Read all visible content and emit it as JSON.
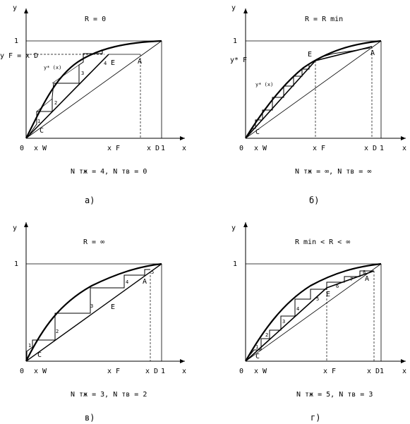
{
  "panels": [
    {
      "id": "a",
      "title": "R = 0",
      "caption": "а)",
      "ntr_text": "N тж = 4,  N тв = 0",
      "labels": {
        "y": "y",
        "x": "x",
        "origin": "0",
        "one_y": "1",
        "one_x": "1",
        "xw": "x W",
        "xf": "x F",
        "xd": "x D",
        "yf": "y F = x D",
        "ystar": "y* (x)",
        "pA": "A",
        "pE": "E",
        "pC": "C"
      },
      "steps": [
        "1",
        "2",
        "3",
        "4"
      ]
    },
    {
      "id": "b",
      "title": "R = R min",
      "caption": "б)",
      "ntr_text": "N тж = ∞,  N тв = ∞",
      "labels": {
        "y": "y",
        "x": "x",
        "origin": "0",
        "one_y": "1",
        "one_x": "1",
        "xw": "x W",
        "xf": "x F",
        "xd": "x D",
        "yf": "y* F",
        "ystar": "y* (x)",
        "pA": "A",
        "pE": "E",
        "pC": "C"
      }
    },
    {
      "id": "c",
      "title": "R = ∞",
      "caption": "в)",
      "ntr_text": "N тж = 3,  N тв = 2",
      "labels": {
        "y": "y",
        "x": "x",
        "origin": "0",
        "one_y": "1",
        "one_x": "1",
        "xw": "x W",
        "xf": "x F",
        "xd": "x D",
        "pA": "A",
        "pE": "E",
        "pC": "C"
      },
      "steps": [
        "1",
        "2",
        "3",
        "4",
        "5"
      ]
    },
    {
      "id": "d",
      "title": "R min < R < ∞",
      "caption": "г)",
      "ntr_text": "N тж = 5,  N тв = 3",
      "labels": {
        "y": "y",
        "x": "x",
        "origin": "0",
        "one_y": "1",
        "one_x": "1",
        "xw": "x W",
        "xf": "x F",
        "xd": "x D",
        "pA": "A",
        "pE": "E",
        "pC": "C"
      },
      "steps": [
        "1",
        "2",
        "3",
        "4",
        "5",
        "6",
        "7",
        "8"
      ]
    }
  ]
}
